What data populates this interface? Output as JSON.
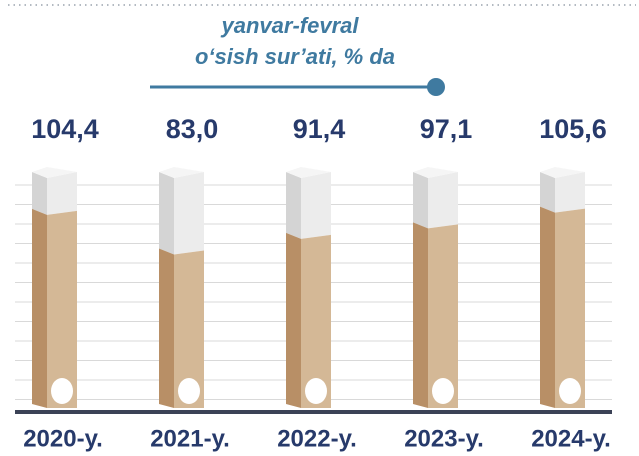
{
  "chart_data": {
    "type": "bar",
    "title": "yanvar-fevral",
    "subtitle": "o‘sish sur’ati, % da",
    "categories": [
      "2020-y.",
      "2021-y.",
      "2022-y.",
      "2023-y.",
      "2024-y."
    ],
    "values": [
      104.4,
      83.0,
      91.4,
      97.1,
      105.6
    ],
    "value_labels": [
      "104,4",
      "83,0",
      "91,4",
      "97,1",
      "105,6"
    ],
    "color": "#d4b896"
  }
}
